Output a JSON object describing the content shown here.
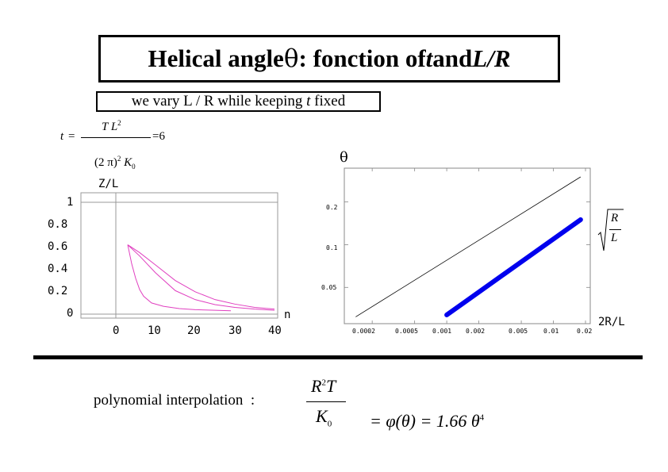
{
  "title": {
    "prefix": "Helical angle ",
    "theta": "θ",
    "middle": " : fonction of ",
    "t": "t",
    "and": " and ",
    "lr": "L/R"
  },
  "subtitle": {
    "text": "we vary L / R while keeping ",
    "t": "t",
    "suffix": " fixed"
  },
  "t_formula": {
    "lhs": "t",
    "eq": "=",
    "numerator": "T L",
    "numerator_sup": "2",
    "denominator_a": "(2 π)",
    "denominator_sup": "2",
    "denominator_b": " K",
    "denominator_sub": "0",
    "rhs": "=6"
  },
  "left_plot": {
    "y_axis_label": "Z/L",
    "x_axis_label": "n",
    "y_ticks": [
      "1",
      "0.8",
      "0.6",
      "0.4",
      "0.2",
      "0"
    ],
    "x_ticks": [
      "0",
      "10",
      "20",
      "30",
      "40"
    ],
    "curve_color": "#e040c0"
  },
  "right_plot": {
    "y_axis_label": "θ",
    "x_axis_label": "2R/L",
    "y_ticks": [
      "0.2",
      "0.1",
      "0.05"
    ],
    "x_ticks": [
      "0.0002",
      "0.0005",
      "0.001",
      "0.002",
      "0.005",
      "0.01",
      "0.02"
    ],
    "right_label_num": "R",
    "right_label_den": "L",
    "thick_line_color": "#0000ee"
  },
  "chart_data": [
    {
      "type": "line",
      "xlabel": "n",
      "ylabel": "Z/L",
      "xlim": [
        -10,
        40
      ],
      "ylim": [
        0,
        1
      ],
      "x_ticks": [
        0,
        10,
        20,
        30,
        40
      ],
      "y_ticks": [
        0,
        0.2,
        0.4,
        0.6,
        0.8,
        1
      ],
      "grid": false,
      "series": [
        {
          "x": [
            3,
            6,
            10,
            15,
            20,
            25,
            30,
            35,
            40
          ],
          "y": [
            0.62,
            0.55,
            0.44,
            0.3,
            0.2,
            0.13,
            0.09,
            0.06,
            0.045
          ]
        },
        {
          "x": [
            3,
            6,
            10,
            15,
            20,
            25,
            30,
            35,
            40
          ],
          "y": [
            0.62,
            0.52,
            0.37,
            0.21,
            0.13,
            0.085,
            0.06,
            0.045,
            0.035
          ]
        },
        {
          "x": [
            3,
            4,
            5,
            6,
            7,
            9,
            12,
            16,
            20,
            25,
            29
          ],
          "y": [
            0.62,
            0.45,
            0.32,
            0.22,
            0.16,
            0.1,
            0.07,
            0.05,
            0.04,
            0.035,
            0.03
          ]
        }
      ]
    },
    {
      "type": "line",
      "xlabel": "2R/L",
      "ylabel": "θ",
      "x_scale": "log",
      "y_scale": "log",
      "xlim": [
        0.00013,
        0.02
      ],
      "ylim": [
        0.03,
        0.32
      ],
      "x_ticks": [
        0.0002,
        0.0005,
        0.001,
        0.002,
        0.005,
        0.01,
        0.02
      ],
      "y_ticks": [
        0.05,
        0.1,
        0.2
      ],
      "grid": false,
      "series": [
        {
          "x": [
            0.00014,
            0.018
          ],
          "y": [
            0.031,
            0.3
          ]
        },
        {
          "x": [
            0.001,
            0.018
          ],
          "y": [
            0.032,
            0.15
          ]
        }
      ]
    }
  ],
  "polynomial": {
    "label": "polynomial interpolation  :",
    "frac_num": "R",
    "frac_num_sup": "2",
    "frac_num_b": "T",
    "frac_den": "K",
    "frac_den_sub": "0",
    "rhs_a": "= φ(θ) = 1.66 θ",
    "rhs_sup": "4"
  }
}
